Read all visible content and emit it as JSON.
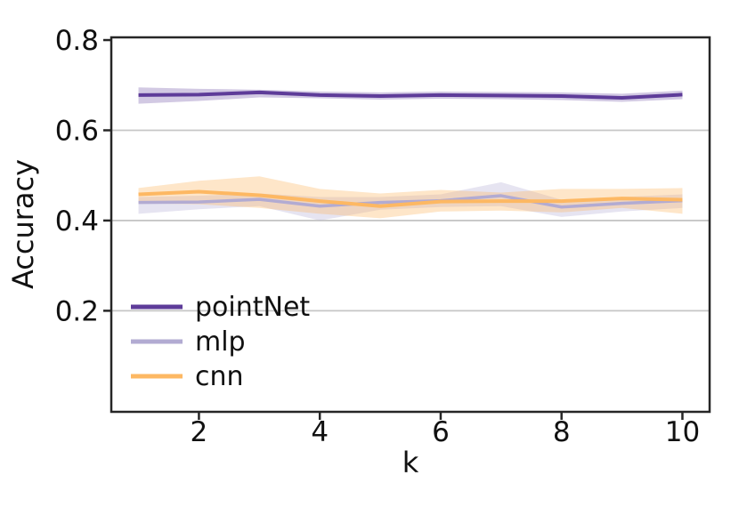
{
  "chart_data": {
    "type": "line",
    "title": "",
    "xlabel": "k",
    "ylabel": "Accuracy",
    "x": [
      1,
      2,
      3,
      4,
      5,
      6,
      7,
      8,
      9,
      10
    ],
    "series": [
      {
        "name": "pointNet",
        "color": "#5e3c99",
        "line_width": 4,
        "band_opacity": 0.28,
        "values": [
          0.678,
          0.679,
          0.684,
          0.678,
          0.676,
          0.678,
          0.677,
          0.676,
          0.672,
          0.679
        ],
        "band_upper": [
          0.695,
          0.692,
          0.69,
          0.686,
          0.684,
          0.686,
          0.685,
          0.684,
          0.681,
          0.688
        ],
        "band_lower": [
          0.659,
          0.665,
          0.673,
          0.671,
          0.668,
          0.67,
          0.669,
          0.667,
          0.663,
          0.669
        ]
      },
      {
        "name": "mlp",
        "color": "#b2abd2",
        "line_width": 3.5,
        "band_opacity": 0.32,
        "values": [
          0.44,
          0.441,
          0.447,
          0.432,
          0.44,
          0.444,
          0.455,
          0.43,
          0.438,
          0.444
        ],
        "band_upper": [
          0.452,
          0.455,
          0.46,
          0.452,
          0.452,
          0.458,
          0.485,
          0.446,
          0.452,
          0.458
        ],
        "band_lower": [
          0.415,
          0.425,
          0.432,
          0.4,
          0.424,
          0.43,
          0.432,
          0.408,
          0.42,
          0.428
        ]
      },
      {
        "name": "cnn",
        "color": "#fdb863",
        "line_width": 4,
        "band_opacity": 0.35,
        "values": [
          0.458,
          0.464,
          0.456,
          0.443,
          0.432,
          0.442,
          0.443,
          0.443,
          0.449,
          0.446
        ],
        "band_upper": [
          0.472,
          0.488,
          0.498,
          0.47,
          0.46,
          0.468,
          0.462,
          0.47,
          0.47,
          0.472
        ],
        "band_lower": [
          0.438,
          0.436,
          0.428,
          0.415,
          0.405,
          0.42,
          0.422,
          0.418,
          0.428,
          0.415
        ]
      }
    ],
    "xlim": [
      0.55,
      10.45
    ],
    "ylim": [
      -0.024,
      0.806
    ],
    "xticks": [
      {
        "value": 2,
        "label": "2"
      },
      {
        "value": 4,
        "label": "4"
      },
      {
        "value": 6,
        "label": "6"
      },
      {
        "value": 8,
        "label": "8"
      },
      {
        "value": 10,
        "label": "10"
      }
    ],
    "yticks": [
      {
        "value": 0.2,
        "label": "0.2"
      },
      {
        "value": 0.4,
        "label": "0.4"
      },
      {
        "value": 0.6,
        "label": "0.6"
      },
      {
        "value": 0.8,
        "label": "0.8"
      }
    ],
    "gridlines_y": [
      0.2,
      0.4,
      0.6
    ],
    "grid_on": true,
    "grid_color": "#c6c6c6",
    "axis_color": "#262626",
    "text_color": "#111111",
    "background_color": "#ffffff",
    "legend": {
      "position": "lower-left",
      "frame": false,
      "items": [
        "pointNet",
        "mlp",
        "cnn"
      ]
    }
  }
}
